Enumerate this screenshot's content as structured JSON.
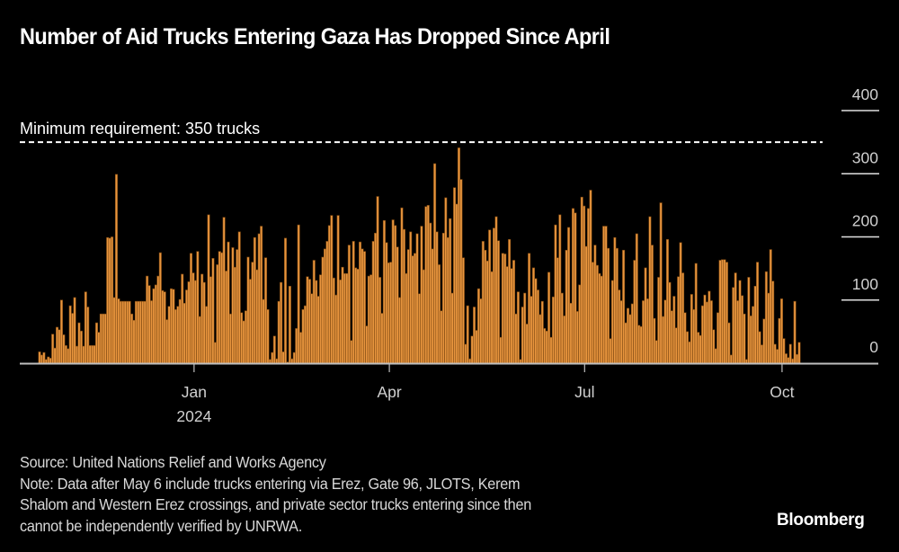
{
  "title": "Number of Aid Trucks Entering Gaza Has Dropped Since April",
  "notes": {
    "source": "Source: United Nations Relief and Works Agency",
    "note_lines": [
      "Note: Data after May 6 include trucks entering via Erez, Gate 96, JLOTS, Kerem",
      "Shalom and Western Erez crossings, and private sector trucks entering since then",
      "cannot be independently verified by UNRWA."
    ]
  },
  "brand": "Bloomberg",
  "colors": {
    "background": "#000000",
    "bar": "#e8953e",
    "bar_edge": "#7a4610",
    "axis": "#bfbfbf",
    "reference_line": "#ffffff"
  },
  "chart_data": {
    "type": "bar",
    "title": "Number of Aid Trucks Entering Gaza Has Dropped Since April",
    "xlabel": "",
    "ylabel": "",
    "x_start_date": "2023-10-21",
    "x_end_date": "2024-10-09",
    "x_ticks": [
      {
        "label": "Jan",
        "sublabel": "2024",
        "date": "2024-01-01"
      },
      {
        "label": "Apr",
        "sublabel": "",
        "date": "2024-04-01"
      },
      {
        "label": "Jul",
        "sublabel": "",
        "date": "2024-07-01"
      },
      {
        "label": "Oct",
        "sublabel": "",
        "date": "2024-10-01"
      }
    ],
    "y_ticks": [
      0,
      100,
      200,
      300,
      400
    ],
    "ylim": [
      0,
      400
    ],
    "grid": false,
    "reference_line": {
      "value": 350,
      "label": "Minimum requirement: 350 trucks"
    },
    "series": [
      {
        "name": "Aid trucks per day",
        "values": [
          18,
          13,
          17,
          6,
          10,
          8,
          46,
          24,
          57,
          53,
          100,
          45,
          28,
          23,
          91,
          79,
          104,
          27,
          64,
          51,
          27,
          113,
          89,
          28,
          28,
          28,
          64,
          49,
          78,
          78,
          78,
          199,
          198,
          200,
          104,
          299,
          102,
          98,
          98,
          98,
          98,
          98,
          78,
          68,
          98,
          98,
          98,
          98,
          98,
          138,
          123,
          99,
          118,
          124,
          138,
          175,
          115,
          113,
          69,
          90,
          118,
          117,
          85,
          90,
          101,
          141,
          95,
          116,
          129,
          174,
          143,
          131,
          177,
          74,
          141,
          128,
          90,
          235,
          137,
          166,
          33,
          156,
          177,
          175,
          231,
          146,
          192,
          78,
          183,
          152,
          180,
          208,
          80,
          67,
          83,
          168,
          133,
          160,
          199,
          148,
          205,
          217,
          101,
          167,
          85,
          6,
          17,
          43,
          7,
          98,
          128,
          18,
          198,
          2,
          122,
          7,
          17,
          55,
          219,
          49,
          85,
          91,
          137,
          133,
          110,
          163,
          131,
          106,
          140,
          168,
          181,
          193,
          218,
          234,
          135,
          108,
          234,
          132,
          152,
          142,
          142,
          187,
          36,
          193,
          151,
          149,
          192,
          181,
          177,
          59,
          138,
          140,
          193,
          206,
          264,
          136,
          79,
          226,
          191,
          159,
          160,
          227,
          218,
          184,
          104,
          246,
          212,
          142,
          180,
          208,
          170,
          174,
          205,
          110,
          217,
          148,
          248,
          250,
          222,
          181,
          316,
          208,
          156,
          83,
          206,
          262,
          199,
          229,
          111,
          278,
          252,
          341,
          291,
          167,
          30,
          91,
          7,
          43,
          89,
          52,
          118,
          102,
          193,
          179,
          162,
          211,
          145,
          214,
          232,
          194,
          41,
          174,
          173,
          153,
          196,
          150,
          163,
          78,
          113,
          6,
          89,
          111,
          62,
          174,
          106,
          151,
          134,
          116,
          77,
          98,
          55,
          51,
          144,
          41,
          105,
          219,
          167,
          235,
          111,
          75,
          179,
          215,
          95,
          245,
          238,
          82,
          124,
          263,
          249,
          185,
          245,
          274,
          160,
          187,
          155,
          142,
          138,
          217,
          217,
          182,
          39,
          131,
          199,
          182,
          116,
          99,
          179,
          64,
          87,
          77,
          94,
          163,
          205,
          60,
          58,
          99,
          151,
          102,
          232,
          187,
          71,
          36,
          136,
          254,
          74,
          100,
          196,
          128,
          83,
          106,
          56,
          137,
          191,
          143,
          80,
          50,
          34,
          109,
          85,
          158,
          49,
          44,
          91,
          108,
          97,
          114,
          99,
          53,
          23,
          80,
          163,
          164,
          164,
          160,
          64,
          13,
          120,
          143,
          99,
          131,
          107,
          78,
          6,
          136,
          75,
          90,
          122,
          160,
          50,
          29,
          70,
          145,
          111,
          180,
          130,
          30,
          22,
          71,
          102,
          39,
          15,
          9,
          30,
          7,
          98,
          14,
          33
        ]
      }
    ]
  }
}
